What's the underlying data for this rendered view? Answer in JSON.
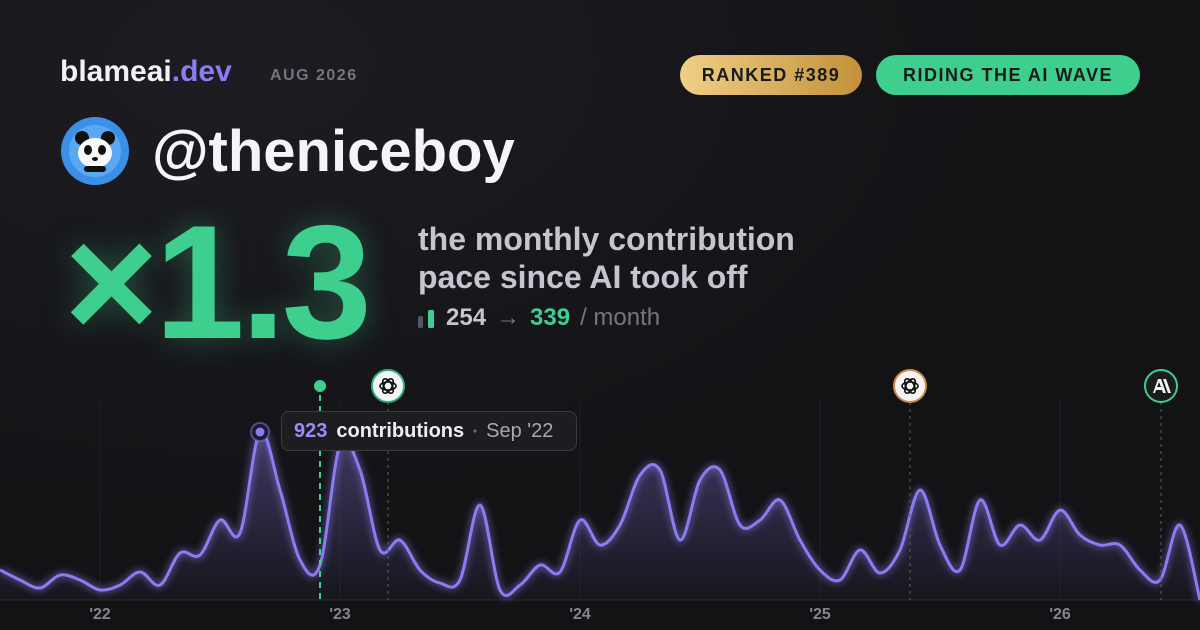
{
  "header": {
    "brand": "blameai",
    "brand_suffix": ".dev",
    "period": "AUG 2026",
    "badges": [
      "RANKED #389",
      "RIDING THE AI WAVE"
    ]
  },
  "user": {
    "handle": "@theniceboy"
  },
  "hero": {
    "multiplier": "×1.3",
    "description_lines": [
      "the monthly contribution",
      "pace since AI took off"
    ],
    "before": "254",
    "arrow": "→",
    "after": "339",
    "unit": "/ month"
  },
  "chart_data": {
    "type": "line",
    "categories": [
      null,
      null,
      null,
      null,
      null,
      "'22",
      null,
      null,
      null,
      null,
      null,
      null,
      null,
      null,
      null,
      null,
      null,
      "'23",
      null,
      null,
      null,
      null,
      null,
      null,
      null,
      null,
      null,
      null,
      null,
      "'24",
      null,
      null,
      null,
      null,
      null,
      null,
      null,
      null,
      null,
      null,
      null,
      "'25",
      null,
      null,
      null,
      null,
      null,
      null,
      null,
      null,
      null,
      null,
      null,
      "'26",
      null,
      null,
      null,
      null,
      null,
      null,
      null
    ],
    "series": [
      {
        "name": "contributions",
        "color": "#8b7cf0",
        "values": [
          165,
          110,
          66,
          137,
          110,
          55,
          82,
          154,
          82,
          258,
          247,
          439,
          368,
          923,
          604,
          220,
          192,
          851,
          714,
          275,
          329,
          165,
          93,
          110,
          522,
          55,
          82,
          192,
          154,
          439,
          302,
          412,
          686,
          714,
          329,
          659,
          714,
          412,
          439,
          549,
          329,
          165,
          110,
          275,
          148,
          275,
          604,
          302,
          165,
          549,
          302,
          412,
          329,
          494,
          357,
          302,
          302,
          165,
          110,
          412,
          0
        ]
      }
    ],
    "tooltip": {
      "index": 13,
      "label": "contributions",
      "date": "Sep '22"
    }
  }
}
